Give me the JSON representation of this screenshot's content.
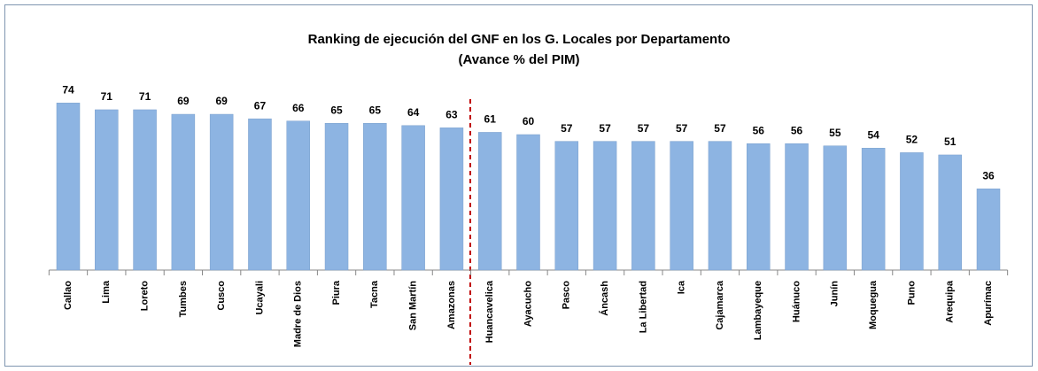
{
  "chart_data": {
    "type": "bar",
    "title": "Ranking de ejecución del GNF en los G. Locales por Departamento",
    "subtitle": "(Avance % del PIM)",
    "categories": [
      "Callao",
      "Lima",
      "Loreto",
      "Tumbes",
      "Cusco",
      "Ucayali",
      "Madre de Dios",
      "Piura",
      "Tacna",
      "San Martín",
      "Amazonas",
      "Huancavelica",
      "Ayacucho",
      "Pasco",
      "Áncash",
      "La Libertad",
      "Ica",
      "Cajamarca",
      "Lambayeque",
      "Huánuco",
      "Junín",
      "Moquegua",
      "Puno",
      "Arequipa",
      "Apurímac"
    ],
    "values": [
      74,
      71,
      71,
      69,
      69,
      67,
      66,
      65,
      65,
      64,
      63,
      61,
      60,
      57,
      57,
      57,
      57,
      57,
      56,
      56,
      55,
      54,
      52,
      51,
      36
    ],
    "color": "#8db4e2",
    "ylim": [
      0,
      80
    ]
  }
}
